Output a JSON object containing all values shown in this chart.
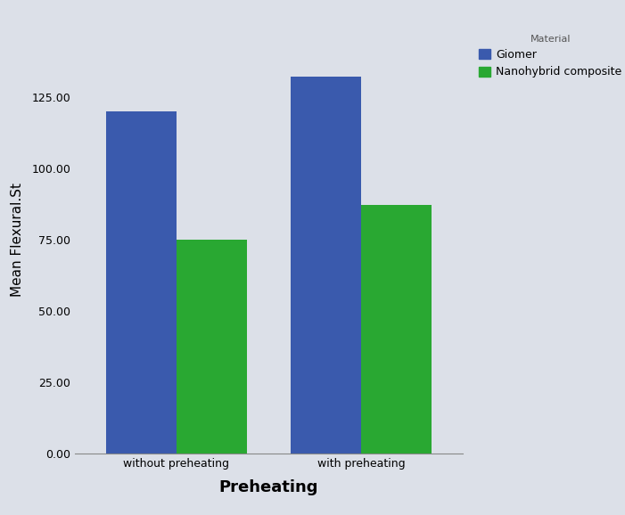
{
  "categories": [
    "without preheating",
    "with preheating"
  ],
  "giomer_values": [
    120.0,
    132.0
  ],
  "nanohybrid_values": [
    75.0,
    87.0
  ],
  "giomer_color": "#3a5aad",
  "nanohybrid_color": "#29a832",
  "ylabel": "Mean Flexural.St",
  "xlabel": "Preheating",
  "legend_title": "Material",
  "legend_labels": [
    "Giomer",
    "Nanohybrid composite"
  ],
  "ylim": [
    0,
    150
  ],
  "yticks": [
    0.0,
    25.0,
    50.0,
    75.0,
    100.0,
    125.0
  ],
  "plot_bg_color": "#dce0e8",
  "fig_bg_color": "#dce0e8",
  "bar_width": 0.38,
  "title_fontsize": 8,
  "axis_label_fontsize": 11,
  "tick_fontsize": 9,
  "legend_fontsize": 9,
  "xlabel_fontsize": 13
}
